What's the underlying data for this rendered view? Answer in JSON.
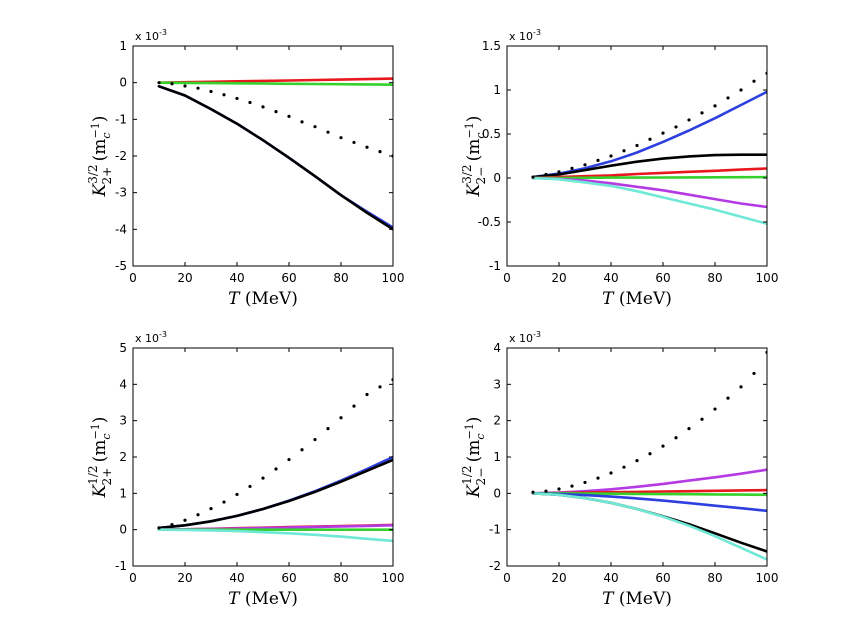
{
  "chart_data": [
    {
      "type": "line",
      "id": "k32-plus",
      "exponent_label": "x 10",
      "exponent_power": "-3",
      "xlabel": {
        "var": "T",
        "unit": " (MeV)"
      },
      "ylabel": {
        "base": "K",
        "sup": "3/2",
        "sub": "2+",
        "unit_prefix": " (m",
        "unit_sub": "c",
        "unit_sup": "−1",
        "unit_suffix": ")"
      },
      "xlim": [
        0,
        100
      ],
      "ylim": [
        -5,
        1
      ],
      "xticks": [
        0,
        20,
        40,
        60,
        80,
        100
      ],
      "yticks": [
        -5,
        -4,
        -3,
        -2,
        -1,
        0,
        1
      ],
      "series": [
        {
          "color": "#e8191e",
          "style": "solid",
          "x": [
            10,
            20,
            30,
            40,
            50,
            60,
            70,
            80,
            90,
            100
          ],
          "y": [
            0,
            0.012,
            0.024,
            0.036,
            0.048,
            0.06,
            0.072,
            0.084,
            0.096,
            0.11
          ]
        },
        {
          "color": "#2d3fde",
          "style": "solid",
          "x": [
            10,
            20,
            30,
            40,
            50,
            60,
            70,
            80,
            90,
            100
          ],
          "y": [
            -0.1,
            -0.35,
            -0.72,
            -1.12,
            -1.57,
            -2.05,
            -2.55,
            -3.07,
            -3.52,
            -3.95
          ]
        },
        {
          "color": "#000000",
          "style": "solid",
          "x": [
            10,
            20,
            30,
            40,
            50,
            60,
            70,
            80,
            90,
            100
          ],
          "y": [
            -0.1,
            -0.35,
            -0.72,
            -1.12,
            -1.57,
            -2.05,
            -2.55,
            -3.07,
            -3.55,
            -4.0
          ]
        },
        {
          "color": "#36d12c",
          "style": "solid",
          "x": [
            10,
            20,
            30,
            40,
            50,
            60,
            70,
            80,
            90,
            100
          ],
          "y": [
            0,
            -0.006,
            -0.012,
            -0.018,
            -0.024,
            -0.03,
            -0.036,
            -0.042,
            -0.048,
            -0.055
          ]
        },
        {
          "color": "#000000",
          "style": "dotted",
          "x": [
            10,
            15,
            20,
            25,
            30,
            35,
            40,
            45,
            50,
            55,
            60,
            65,
            70,
            75,
            80,
            85,
            90,
            95,
            100
          ],
          "y": [
            0,
            -0.03,
            -0.09,
            -0.15,
            -0.24,
            -0.33,
            -0.43,
            -0.54,
            -0.66,
            -0.79,
            -0.92,
            -1.07,
            -1.2,
            -1.35,
            -1.5,
            -1.63,
            -1.76,
            -1.88,
            -2.0
          ]
        }
      ]
    },
    {
      "type": "line",
      "id": "k32-minus",
      "exponent_label": "x 10",
      "exponent_power": "-3",
      "xlabel": {
        "var": "T",
        "unit": " (MeV)"
      },
      "ylabel": {
        "base": "K",
        "sup": "3/2",
        "sub": "2−",
        "unit_prefix": " (m",
        "unit_sub": "c",
        "unit_sup": "−1",
        "unit_suffix": ")"
      },
      "xlim": [
        0,
        100
      ],
      "ylim": [
        -1,
        1.5
      ],
      "xticks": [
        0,
        20,
        40,
        60,
        80,
        100
      ],
      "yticks": [
        -1,
        -0.5,
        0,
        0.5,
        1,
        1.5
      ],
      "series": [
        {
          "color": "#2d3fde",
          "style": "solid",
          "x": [
            10,
            20,
            30,
            40,
            50,
            60,
            70,
            80,
            90,
            100
          ],
          "y": [
            0.01,
            0.05,
            0.11,
            0.19,
            0.29,
            0.41,
            0.54,
            0.68,
            0.83,
            0.98
          ]
        },
        {
          "color": "#000000",
          "style": "solid",
          "x": [
            10,
            20,
            30,
            40,
            50,
            60,
            70,
            80,
            90,
            100
          ],
          "y": [
            0.01,
            0.04,
            0.09,
            0.14,
            0.185,
            0.22,
            0.245,
            0.26,
            0.265,
            0.265
          ]
        },
        {
          "color": "#e8191e",
          "style": "solid",
          "x": [
            10,
            20,
            30,
            40,
            50,
            60,
            70,
            80,
            90,
            100
          ],
          "y": [
            0,
            0.01,
            0.02,
            0.03,
            0.045,
            0.058,
            0.07,
            0.082,
            0.095,
            0.108
          ]
        },
        {
          "color": "#36d12c",
          "style": "solid",
          "x": [
            10,
            20,
            30,
            40,
            50,
            60,
            70,
            80,
            90,
            100
          ],
          "y": [
            0,
            0,
            0.002,
            0.004,
            0.005,
            0.006,
            0.007,
            0.008,
            0.009,
            0.01
          ]
        },
        {
          "color": "#b43be4",
          "style": "solid",
          "x": [
            10,
            20,
            30,
            40,
            50,
            60,
            70,
            80,
            90,
            100
          ],
          "y": [
            0,
            -0.01,
            -0.03,
            -0.06,
            -0.1,
            -0.14,
            -0.19,
            -0.24,
            -0.29,
            -0.33
          ]
        },
        {
          "color": "#6fe8d6",
          "style": "solid",
          "x": [
            10,
            20,
            30,
            40,
            50,
            60,
            70,
            80,
            90,
            100
          ],
          "y": [
            0,
            -0.015,
            -0.05,
            -0.09,
            -0.15,
            -0.22,
            -0.29,
            -0.36,
            -0.44,
            -0.52
          ]
        },
        {
          "color": "#000000",
          "style": "dotted",
          "x": [
            10,
            15,
            20,
            25,
            30,
            35,
            40,
            45,
            50,
            55,
            60,
            65,
            70,
            75,
            80,
            85,
            90,
            95,
            100
          ],
          "y": [
            0.01,
            0.04,
            0.07,
            0.11,
            0.15,
            0.2,
            0.25,
            0.31,
            0.37,
            0.44,
            0.51,
            0.58,
            0.66,
            0.74,
            0.82,
            0.91,
            1.0,
            1.1,
            1.19
          ]
        }
      ]
    },
    {
      "type": "line",
      "id": "k12-plus",
      "exponent_label": "x 10",
      "exponent_power": "-3",
      "xlabel": {
        "var": "T",
        "unit": " (MeV)"
      },
      "ylabel": {
        "base": "K",
        "sup": "1/2",
        "sub": "2+",
        "unit_prefix": " (m",
        "unit_sub": "c",
        "unit_sup": "−1",
        "unit_suffix": ")"
      },
      "xlim": [
        0,
        100
      ],
      "ylim": [
        -1,
        5
      ],
      "xticks": [
        0,
        20,
        40,
        60,
        80,
        100
      ],
      "yticks": [
        -1,
        0,
        1,
        2,
        3,
        4,
        5
      ],
      "series": [
        {
          "color": "#2d3fde",
          "style": "solid",
          "x": [
            10,
            20,
            30,
            40,
            50,
            60,
            70,
            80,
            90,
            100
          ],
          "y": [
            0.05,
            0.12,
            0.23,
            0.38,
            0.57,
            0.8,
            1.06,
            1.35,
            1.67,
            2.0
          ]
        },
        {
          "color": "#000000",
          "style": "solid",
          "x": [
            10,
            20,
            30,
            40,
            50,
            60,
            70,
            80,
            90,
            100
          ],
          "y": [
            0.05,
            0.12,
            0.23,
            0.38,
            0.57,
            0.79,
            1.04,
            1.32,
            1.62,
            1.92
          ]
        },
        {
          "color": "#e8191e",
          "style": "solid",
          "x": [
            10,
            20,
            30,
            40,
            50,
            60,
            70,
            80,
            90,
            100
          ],
          "y": [
            0,
            0.01,
            0.025,
            0.04,
            0.055,
            0.07,
            0.085,
            0.1,
            0.115,
            0.13
          ]
        },
        {
          "color": "#b43be4",
          "style": "solid",
          "x": [
            10,
            20,
            30,
            40,
            50,
            60,
            70,
            80,
            90,
            100
          ],
          "y": [
            0,
            0.01,
            0.02,
            0.03,
            0.045,
            0.06,
            0.075,
            0.09,
            0.105,
            0.12
          ]
        },
        {
          "color": "#36d12c",
          "style": "solid",
          "x": [
            10,
            20,
            30,
            40,
            50,
            60,
            70,
            80,
            90,
            100
          ],
          "y": [
            0,
            0,
            0,
            0,
            0,
            0,
            0,
            0,
            0,
            0
          ]
        },
        {
          "color": "#6fe8d6",
          "style": "solid",
          "x": [
            10,
            20,
            30,
            40,
            50,
            60,
            70,
            80,
            90,
            100
          ],
          "y": [
            0,
            -0.01,
            -0.02,
            -0.04,
            -0.07,
            -0.1,
            -0.14,
            -0.19,
            -0.25,
            -0.31
          ]
        },
        {
          "color": "#000000",
          "style": "dotted",
          "x": [
            10,
            15,
            20,
            25,
            30,
            35,
            40,
            45,
            50,
            55,
            60,
            65,
            70,
            75,
            80,
            85,
            90,
            95,
            100
          ],
          "y": [
            0.05,
            0.14,
            0.26,
            0.41,
            0.58,
            0.76,
            0.97,
            1.19,
            1.42,
            1.67,
            1.93,
            2.2,
            2.48,
            2.78,
            3.08,
            3.4,
            3.72,
            3.93,
            4.13
          ]
        }
      ]
    },
    {
      "type": "line",
      "id": "k12-minus",
      "exponent_label": "x 10",
      "exponent_power": "-3",
      "xlabel": {
        "var": "T",
        "unit": " (MeV)"
      },
      "ylabel": {
        "base": "K",
        "sup": "1/2",
        "sub": "2−",
        "unit_prefix": " (m",
        "unit_sub": "c",
        "unit_sup": "−1",
        "unit_suffix": ")"
      },
      "xlim": [
        0,
        100
      ],
      "ylim": [
        -2,
        4
      ],
      "xticks": [
        0,
        20,
        40,
        60,
        80,
        100
      ],
      "yticks": [
        -2,
        -1,
        0,
        1,
        2,
        3,
        4
      ],
      "series": [
        {
          "color": "#b43be4",
          "style": "solid",
          "x": [
            10,
            20,
            30,
            40,
            50,
            60,
            70,
            80,
            90,
            100
          ],
          "y": [
            0,
            0.02,
            0.06,
            0.11,
            0.18,
            0.26,
            0.35,
            0.44,
            0.54,
            0.65
          ]
        },
        {
          "color": "#e8191e",
          "style": "solid",
          "x": [
            10,
            20,
            30,
            40,
            50,
            60,
            70,
            80,
            90,
            100
          ],
          "y": [
            0,
            0.01,
            0.02,
            0.03,
            0.04,
            0.05,
            0.06,
            0.07,
            0.08,
            0.09
          ]
        },
        {
          "color": "#36d12c",
          "style": "solid",
          "x": [
            10,
            20,
            30,
            40,
            50,
            60,
            70,
            80,
            90,
            100
          ],
          "y": [
            0,
            0,
            -0.005,
            -0.01,
            -0.015,
            -0.02,
            -0.025,
            -0.03,
            -0.035,
            -0.04
          ]
        },
        {
          "color": "#2d3fde",
          "style": "solid",
          "x": [
            10,
            20,
            30,
            40,
            50,
            60,
            70,
            80,
            90,
            100
          ],
          "y": [
            0,
            -0.02,
            -0.05,
            -0.09,
            -0.14,
            -0.2,
            -0.27,
            -0.34,
            -0.41,
            -0.48
          ]
        },
        {
          "color": "#000000",
          "style": "solid",
          "x": [
            10,
            20,
            30,
            40,
            50,
            60,
            70,
            80,
            90,
            100
          ],
          "y": [
            0,
            -0.04,
            -0.13,
            -0.26,
            -0.43,
            -0.63,
            -0.85,
            -1.1,
            -1.36,
            -1.6
          ]
        },
        {
          "color": "#6fe8d6",
          "style": "solid",
          "x": [
            10,
            20,
            30,
            40,
            50,
            60,
            70,
            80,
            90,
            100
          ],
          "y": [
            0,
            -0.04,
            -0.13,
            -0.26,
            -0.43,
            -0.64,
            -0.89,
            -1.18,
            -1.5,
            -1.82
          ]
        },
        {
          "color": "#000000",
          "style": "dotted",
          "x": [
            10,
            15,
            20,
            25,
            30,
            35,
            40,
            45,
            50,
            55,
            60,
            65,
            70,
            75,
            80,
            85,
            90,
            95,
            100
          ],
          "y": [
            0.03,
            0.06,
            0.12,
            0.2,
            0.3,
            0.42,
            0.56,
            0.72,
            0.9,
            1.09,
            1.3,
            1.53,
            1.78,
            2.04,
            2.32,
            2.62,
            2.93,
            3.3,
            3.88
          ]
        }
      ]
    }
  ]
}
